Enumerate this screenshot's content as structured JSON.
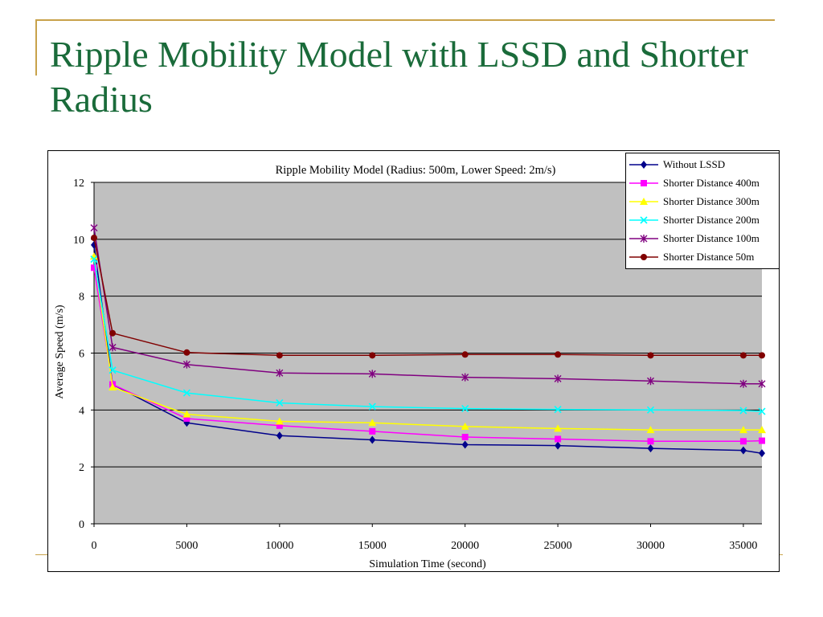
{
  "slide": {
    "title": "Ripple Mobility Model with LSSD and Shorter Radius"
  },
  "chart_data": {
    "type": "line",
    "title": "Ripple Mobility Model (Radius: 500m, Lower Speed: 2m/s)",
    "xlabel": "Simulation Time (second)",
    "ylabel": "Average Speed (m/s)",
    "xlim": [
      0,
      36000
    ],
    "ylim": [
      0,
      12
    ],
    "xticks": [
      0,
      5000,
      10000,
      15000,
      20000,
      25000,
      30000,
      35000
    ],
    "yticks": [
      0,
      2,
      4,
      6,
      8,
      10,
      12
    ],
    "grid": "horizontal",
    "legend_position": "top-right",
    "x": [
      0,
      1000,
      5000,
      10000,
      15000,
      20000,
      25000,
      30000,
      35000,
      36000
    ],
    "series": [
      {
        "name": "Without LSSD",
        "color": "#00008b",
        "marker": "diamond",
        "values": [
          9.8,
          4.9,
          3.55,
          3.1,
          2.95,
          2.78,
          2.75,
          2.65,
          2.58,
          2.48
        ]
      },
      {
        "name": "Shorter Distance 400m",
        "color": "#ff00ff",
        "marker": "square",
        "values": [
          9.0,
          4.9,
          3.7,
          3.45,
          3.25,
          3.05,
          2.98,
          2.9,
          2.9,
          2.92
        ]
      },
      {
        "name": "Shorter Distance 300m",
        "color": "#ffff00",
        "marker": "triangle",
        "values": [
          9.4,
          4.8,
          3.85,
          3.6,
          3.55,
          3.42,
          3.35,
          3.3,
          3.3,
          3.3
        ]
      },
      {
        "name": "Shorter Distance 200m",
        "color": "#00ffff",
        "marker": "x",
        "values": [
          9.3,
          5.4,
          4.6,
          4.25,
          4.12,
          4.05,
          4.02,
          4.0,
          3.98,
          3.95
        ]
      },
      {
        "name": "Shorter Distance 100m",
        "color": "#800080",
        "marker": "asterisk",
        "values": [
          10.4,
          6.2,
          5.6,
          5.3,
          5.27,
          5.15,
          5.1,
          5.02,
          4.92,
          4.92
        ]
      },
      {
        "name": "Shorter Distance 50m",
        "color": "#800000",
        "marker": "circle",
        "values": [
          10.05,
          6.7,
          6.02,
          5.92,
          5.92,
          5.95,
          5.95,
          5.92,
          5.92,
          5.92
        ]
      }
    ]
  }
}
